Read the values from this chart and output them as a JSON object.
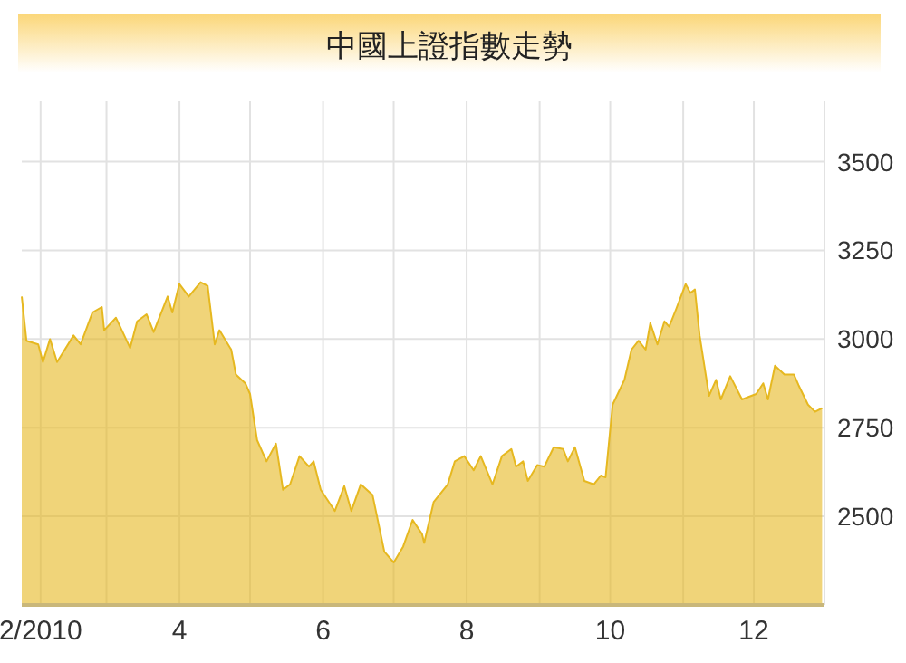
{
  "chart_data": {
    "type": "area",
    "title": "中國上證指數走勢",
    "xlim": [
      "2010-01-24",
      "2010-12-31"
    ],
    "xticks": [
      {
        "value": "2010-02-01",
        "label": "2/2010"
      },
      {
        "value": "2010-03-01",
        "label": null
      },
      {
        "value": "2010-04-01",
        "label": "4"
      },
      {
        "value": "2010-05-01",
        "label": null
      },
      {
        "value": "2010-06-01",
        "label": "6"
      },
      {
        "value": "2010-07-01",
        "label": null
      },
      {
        "value": "2010-08-01",
        "label": "8"
      },
      {
        "value": "2010-09-01",
        "label": null
      },
      {
        "value": "2010-10-01",
        "label": "10"
      },
      {
        "value": "2010-11-01",
        "label": null
      },
      {
        "value": "2010-12-01",
        "label": "12"
      }
    ],
    "ylim": [
      2250,
      3670
    ],
    "yticks": [
      2500,
      2750,
      3000,
      3250,
      3500
    ],
    "grid": true,
    "x": [
      "2010-01-24",
      "2010-01-26",
      "2010-01-31",
      "2010-02-02",
      "2010-02-05",
      "2010-02-08",
      "2010-02-15",
      "2010-02-18",
      "2010-02-23",
      "2010-02-27",
      "2010-02-28",
      "2010-03-05",
      "2010-03-11",
      "2010-03-14",
      "2010-03-18",
      "2010-03-21",
      "2010-03-27",
      "2010-03-29",
      "2010-04-01",
      "2010-04-05",
      "2010-04-10",
      "2010-04-13",
      "2010-04-16",
      "2010-04-18",
      "2010-04-23",
      "2010-04-25",
      "2010-04-29",
      "2010-05-01",
      "2010-05-04",
      "2010-05-08",
      "2010-05-12",
      "2010-05-15",
      "2010-05-18",
      "2010-05-22",
      "2010-05-26",
      "2010-05-28",
      "2010-05-31",
      "2010-06-06",
      "2010-06-10",
      "2010-06-13",
      "2010-06-17",
      "2010-06-22",
      "2010-06-27",
      "2010-07-01",
      "2010-07-05",
      "2010-07-09",
      "2010-07-13",
      "2010-07-14",
      "2010-07-18",
      "2010-07-24",
      "2010-07-27",
      "2010-07-31",
      "2010-08-04",
      "2010-08-07",
      "2010-08-12",
      "2010-08-16",
      "2010-08-20",
      "2010-08-22",
      "2010-08-25",
      "2010-08-27",
      "2010-08-31",
      "2010-09-03",
      "2010-09-07",
      "2010-09-11",
      "2010-09-13",
      "2010-09-16",
      "2010-09-20",
      "2010-09-24",
      "2010-09-27",
      "2010-09-29",
      "2010-10-02",
      "2010-10-07",
      "2010-10-10",
      "2010-10-13",
      "2010-10-16",
      "2010-10-18",
      "2010-10-21",
      "2010-10-24",
      "2010-10-26",
      "2010-10-29",
      "2010-11-02",
      "2010-11-04",
      "2010-11-06",
      "2010-11-08",
      "2010-11-12",
      "2010-11-15",
      "2010-11-17",
      "2010-11-21",
      "2010-11-26",
      "2010-12-02",
      "2010-12-05",
      "2010-12-07",
      "2010-12-10",
      "2010-12-14",
      "2010-12-18",
      "2010-12-20",
      "2010-12-24",
      "2010-12-27",
      "2010-12-30"
    ],
    "series": [
      {
        "color": "#e6b820",
        "values": [
          3120,
          2995,
          2985,
          2935,
          3000,
          2935,
          3010,
          2985,
          3075,
          3090,
          3025,
          3060,
          2975,
          3050,
          3070,
          3020,
          3120,
          3075,
          3155,
          3120,
          3160,
          3150,
          2985,
          3025,
          2970,
          2900,
          2875,
          2845,
          2715,
          2655,
          2705,
          2575,
          2590,
          2670,
          2640,
          2655,
          2575,
          2515,
          2585,
          2515,
          2590,
          2560,
          2400,
          2370,
          2415,
          2490,
          2450,
          2425,
          2540,
          2590,
          2655,
          2670,
          2630,
          2670,
          2590,
          2670,
          2690,
          2640,
          2655,
          2600,
          2645,
          2640,
          2695,
          2690,
          2655,
          2695,
          2600,
          2590,
          2615,
          2610,
          2815,
          2885,
          2970,
          2995,
          2970,
          3045,
          2985,
          3050,
          3035,
          3085,
          3155,
          3130,
          3140,
          3010,
          2840,
          2885,
          2830,
          2895,
          2830,
          2845,
          2875,
          2830,
          2925,
          2900,
          2900,
          2870,
          2815,
          2795,
          2805
        ]
      }
    ]
  }
}
